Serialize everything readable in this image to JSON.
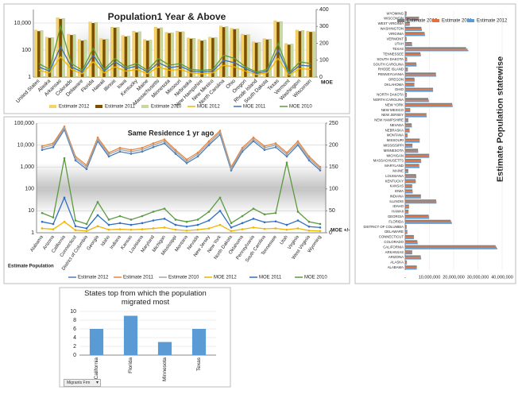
{
  "chart_data": [
    {
      "type": "bar",
      "title": "Population1 Year & Above",
      "y2_label": "MOE",
      "categories": [
        "United States",
        "Alaska",
        "Arkansas",
        "Colorado",
        "Delaware",
        "Florida",
        "Hawaii",
        "Illinois",
        "Iowa",
        "Kentucky",
        "Maine",
        "Massachusetts",
        "Minnesota",
        "Missouri",
        "Nebraska",
        "New Hampshire",
        "New Mexico",
        "North Carolina",
        "Ohio",
        "Oregon",
        "Rhode Island",
        "South Dakota",
        "Texas",
        "Vermont",
        "Washington",
        "Wisconsin"
      ],
      "log_y": true,
      "ylim": [
        1,
        100000
      ],
      "yticks": [
        1,
        100,
        {
          "value": 10000,
          "label": "10,000"
        }
      ],
      "y2lim": [
        0,
        400
      ],
      "y2ticks": [
        0,
        100,
        200,
        300,
        400
      ],
      "grid": true,
      "series": [
        {
          "name": "Estimate 2012",
          "type": "bar",
          "color": "#f5d36b",
          "values": [
            3000,
            900,
            25000,
            1500,
            600,
            12000,
            700,
            5000,
            1200,
            2500,
            600,
            5000,
            2000,
            2500,
            800,
            600,
            900,
            6000,
            4000,
            1500,
            400,
            700,
            15000,
            300,
            3000,
            2500
          ]
        },
        {
          "name": "Estimate 2011",
          "type": "bar",
          "color": "#7f4f00",
          "values": [
            2500,
            800,
            20000,
            1300,
            500,
            10000,
            600,
            4500,
            1000,
            2000,
            500,
            4000,
            1800,
            2200,
            700,
            500,
            800,
            5000,
            3500,
            1300,
            350,
            600,
            12000,
            250,
            2500,
            2200
          ]
        },
        {
          "name": "Estimate 2010",
          "type": "bar",
          "color": "#c5d9a0",
          "values": [
            2800,
            850,
            22000,
            1400,
            550,
            11000,
            650,
            4800,
            1100,
            2300,
            550,
            4500,
            1900,
            2300,
            750,
            550,
            850,
            5500,
            3800,
            1400,
            380,
            650,
            13000,
            280,
            2800,
            2300
          ]
        },
        {
          "name": "MOE 2012",
          "type": "line",
          "axis": "y2",
          "color": "#f0b400",
          "values": [
            40,
            25,
            120,
            45,
            20,
            90,
            25,
            60,
            35,
            45,
            20,
            60,
            40,
            45,
            25,
            20,
            25,
            70,
            60,
            35,
            15,
            25,
            110,
            12,
            50,
            45
          ]
        },
        {
          "name": "MOE 2011",
          "type": "line",
          "axis": "y2",
          "color": "#3f6fb5",
          "values": [
            60,
            35,
            180,
            60,
            30,
            130,
            35,
            90,
            50,
            65,
            30,
            85,
            55,
            65,
            35,
            30,
            35,
            100,
            85,
            50,
            22,
            35,
            160,
            18,
            70,
            65
          ]
        },
        {
          "name": "MOE 2010",
          "type": "line",
          "axis": "y2",
          "color": "#5b9a3e",
          "values": [
            80,
            45,
            300,
            80,
            40,
            170,
            45,
            110,
            60,
            80,
            40,
            110,
            70,
            80,
            45,
            40,
            45,
            130,
            110,
            60,
            30,
            45,
            200,
            25,
            90,
            80
          ]
        }
      ]
    },
    {
      "type": "line",
      "title": "Same Residence 1 yr ago",
      "y_label": "Estimate Population",
      "y2_label": "MOE +/-",
      "categories": [
        "Alabama",
        "Arizona",
        "California",
        "Connecticut",
        "District of Columbia",
        "Georgia",
        "Idaho",
        "Indiana",
        "Kansas",
        "Louisiana",
        "Maryland",
        "Michigan",
        "Mississippi",
        "Montana",
        "Nevada",
        "New Jersey",
        "New York",
        "North Dakota",
        "Oklahoma",
        "Pennsylvania",
        "South Carolina",
        "Tennessee",
        "Utah",
        "Virginia",
        "West Virginia",
        "Wyoming"
      ],
      "log_y": true,
      "ylim": [
        1,
        100000
      ],
      "yticks": [
        1,
        10,
        100,
        {
          "value": 1000,
          "label": "1,000"
        },
        {
          "value": 10000,
          "label": "10,000"
        },
        {
          "value": 100000,
          "label": "100,000"
        }
      ],
      "y2lim": [
        0,
        250
      ],
      "y2ticks": [
        0,
        50,
        100,
        150,
        200,
        250
      ],
      "grid": true,
      "markers": true,
      "series": [
        {
          "name": "Estimate 2012",
          "color": "#4a7ebb",
          "values": [
            6000,
            8000,
            50000,
            2000,
            800,
            15000,
            3000,
            5000,
            4000,
            5000,
            8000,
            12000,
            4000,
            1500,
            3000,
            10000,
            30000,
            700,
            5000,
            15000,
            6000,
            8000,
            3000,
            10000,
            2000,
            700
          ]
        },
        {
          "name": "Estimate 2011",
          "color": "#e8853d",
          "values": [
            9000,
            12000,
            70000,
            3000,
            1200,
            22000,
            4500,
            7500,
            6000,
            7500,
            12000,
            18000,
            6000,
            2200,
            4500,
            15000,
            45000,
            1000,
            7500,
            22000,
            9000,
            12000,
            4500,
            15000,
            3000,
            1000
          ]
        },
        {
          "name": "Estimate 2010",
          "color": "#a5a5a5",
          "values": [
            7500,
            10000,
            60000,
            2500,
            1000,
            18000,
            3800,
            6200,
            5000,
            6200,
            10000,
            15000,
            5000,
            1800,
            3800,
            12000,
            38000,
            850,
            6200,
            18000,
            7500,
            10000,
            3800,
            12000,
            2500,
            850
          ]
        },
        {
          "name": "MOE 2012",
          "axis": "y2",
          "color": "#f0b400",
          "values": [
            10,
            8,
            25,
            6,
            4,
            15,
            7,
            8,
            7,
            8,
            10,
            12,
            7,
            5,
            7,
            10,
            18,
            4,
            8,
            12,
            9,
            10,
            7,
            10,
            5,
            4
          ]
        },
        {
          "name": "MOE 2011",
          "axis": "y2",
          "color": "#2e6fc0",
          "values": [
            25,
            20,
            80,
            15,
            10,
            40,
            18,
            22,
            18,
            22,
            28,
            32,
            18,
            14,
            18,
            28,
            50,
            12,
            22,
            32,
            24,
            26,
            18,
            28,
            14,
            12
          ]
        },
        {
          "name": "MOE 2010",
          "axis": "y2",
          "color": "#5b9a3e",
          "values": [
            45,
            35,
            170,
            28,
            20,
            70,
            30,
            38,
            30,
            38,
            48,
            55,
            30,
            25,
            30,
            48,
            80,
            22,
            38,
            55,
            42,
            45,
            160,
            48,
            25,
            20
          ]
        }
      ]
    },
    {
      "type": "bar",
      "orientation": "horizontal",
      "title": "Estimate Population statewise",
      "categories": [
        "ALABAMA",
        "ALASKA",
        "ARIZONA",
        "ARKANSAS",
        "CALIFORNIA",
        "COLORADO",
        "CONNECTICUT",
        "DELAWARE",
        "DISTRICT OF COLUMBIA",
        "FLORIDA",
        "GEORGIA",
        "HAWAII",
        "IDAHO",
        "ILLINOIS",
        "INDIANA",
        "IOWA",
        "KANSAS",
        "KENTUCKY",
        "LOUISIANA",
        "MAINE",
        "MARYLAND",
        "MASSACHUSETTS",
        "MICHIGAN",
        "MINNESOTA",
        "MISSISSIPPI",
        "MISSOURI",
        "MONTANA",
        "NEBRASKA",
        "NEVADA",
        "NEW HAMPSHIRE",
        "NEW JERSEY",
        "NEW MEXICO",
        "NEW YORK",
        "NORTH CAROLINA",
        "NORTH DAKOTA",
        "OHIO",
        "OKLAHOMA",
        "OREGON",
        "PENNSYLVANIA",
        "RHODE ISLAND",
        "SOUTH CAROLINA",
        "SOUTH DAKOTA",
        "TENNESSEE",
        "TEXAS",
        "UTAH",
        "VERMONT",
        "VIRGINIA",
        "WASHINGTON",
        "WEST VIRGINIA",
        "WISCONSIN",
        "WYOMING"
      ],
      "xlim": [
        0,
        40000000
      ],
      "xticks": [
        {
          "value": 0,
          "label": "-"
        },
        {
          "value": 10000000,
          "label": "10,000,000"
        },
        {
          "value": 20000000,
          "label": "20,000,000"
        },
        {
          "value": 30000000,
          "label": "30,000,000"
        },
        {
          "value": 40000000,
          "label": "40,000,000"
        }
      ],
      "series": [
        {
          "name": "Estimate 2010",
          "color": "#7f7f7f",
          "values": [
            4800000,
            710000,
            6400000,
            2900000,
            37300000,
            5000000,
            3600000,
            900000,
            600000,
            18800000,
            9700000,
            1400000,
            1600000,
            12800000,
            6500000,
            3000000,
            2900000,
            4300000,
            4500000,
            1300000,
            5800000,
            6500000,
            9900000,
            5300000,
            3000000,
            6000000,
            1000000,
            1800000,
            2700000,
            1300000,
            8800000,
            2100000,
            19400000,
            9500000,
            700000,
            11500000,
            3800000,
            3800000,
            12700000,
            1100000,
            4600000,
            800000,
            6300000,
            25100000,
            2800000,
            600000,
            8000000,
            6700000,
            1900000,
            5700000,
            600000
          ]
        },
        {
          "name": "Estimate 2011",
          "color": "#e07040",
          "values": [
            4800000,
            720000,
            6500000,
            2900000,
            37700000,
            5100000,
            3600000,
            900000,
            620000,
            19100000,
            9800000,
            1400000,
            1600000,
            12900000,
            6500000,
            3100000,
            2900000,
            4400000,
            4600000,
            1300000,
            5800000,
            6600000,
            9900000,
            5300000,
            3000000,
            6000000,
            1000000,
            1800000,
            2700000,
            1300000,
            8800000,
            2100000,
            19500000,
            9700000,
            700000,
            11500000,
            3800000,
            3900000,
            12700000,
            1100000,
            4700000,
            820000,
            6400000,
            25700000,
            2800000,
            630000,
            8100000,
            6800000,
            1900000,
            5700000,
            570000
          ]
        },
        {
          "name": "Estimate 2012",
          "color": "#5b9bd5",
          "values": [
            4800000,
            730000,
            6600000,
            2900000,
            38000000,
            5200000,
            3600000,
            920000,
            630000,
            19300000,
            9900000,
            1400000,
            1600000,
            12900000,
            6500000,
            3100000,
            2900000,
            4400000,
            4600000,
            1300000,
            5900000,
            6600000,
            9900000,
            5400000,
            3000000,
            6000000,
            1000000,
            1900000,
            2800000,
            1300000,
            8900000,
            2100000,
            19600000,
            9800000,
            700000,
            11500000,
            3800000,
            3900000,
            12800000,
            1100000,
            4700000,
            830000,
            6500000,
            26100000,
            2900000,
            630000,
            8200000,
            6900000,
            1900000,
            5700000,
            580000
          ]
        }
      ]
    },
    {
      "type": "bar",
      "title": "States top from which the population migrated most",
      "categories": [
        "California",
        "Florida",
        "Minnesota",
        "Texas"
      ],
      "values": [
        6,
        9,
        3,
        6
      ],
      "color": "#5b9bd5",
      "ylim": [
        0,
        10
      ],
      "yticks": [
        0,
        2,
        4,
        6,
        8,
        10
      ],
      "grid": true,
      "filter_label": "Migrants Frm"
    }
  ]
}
